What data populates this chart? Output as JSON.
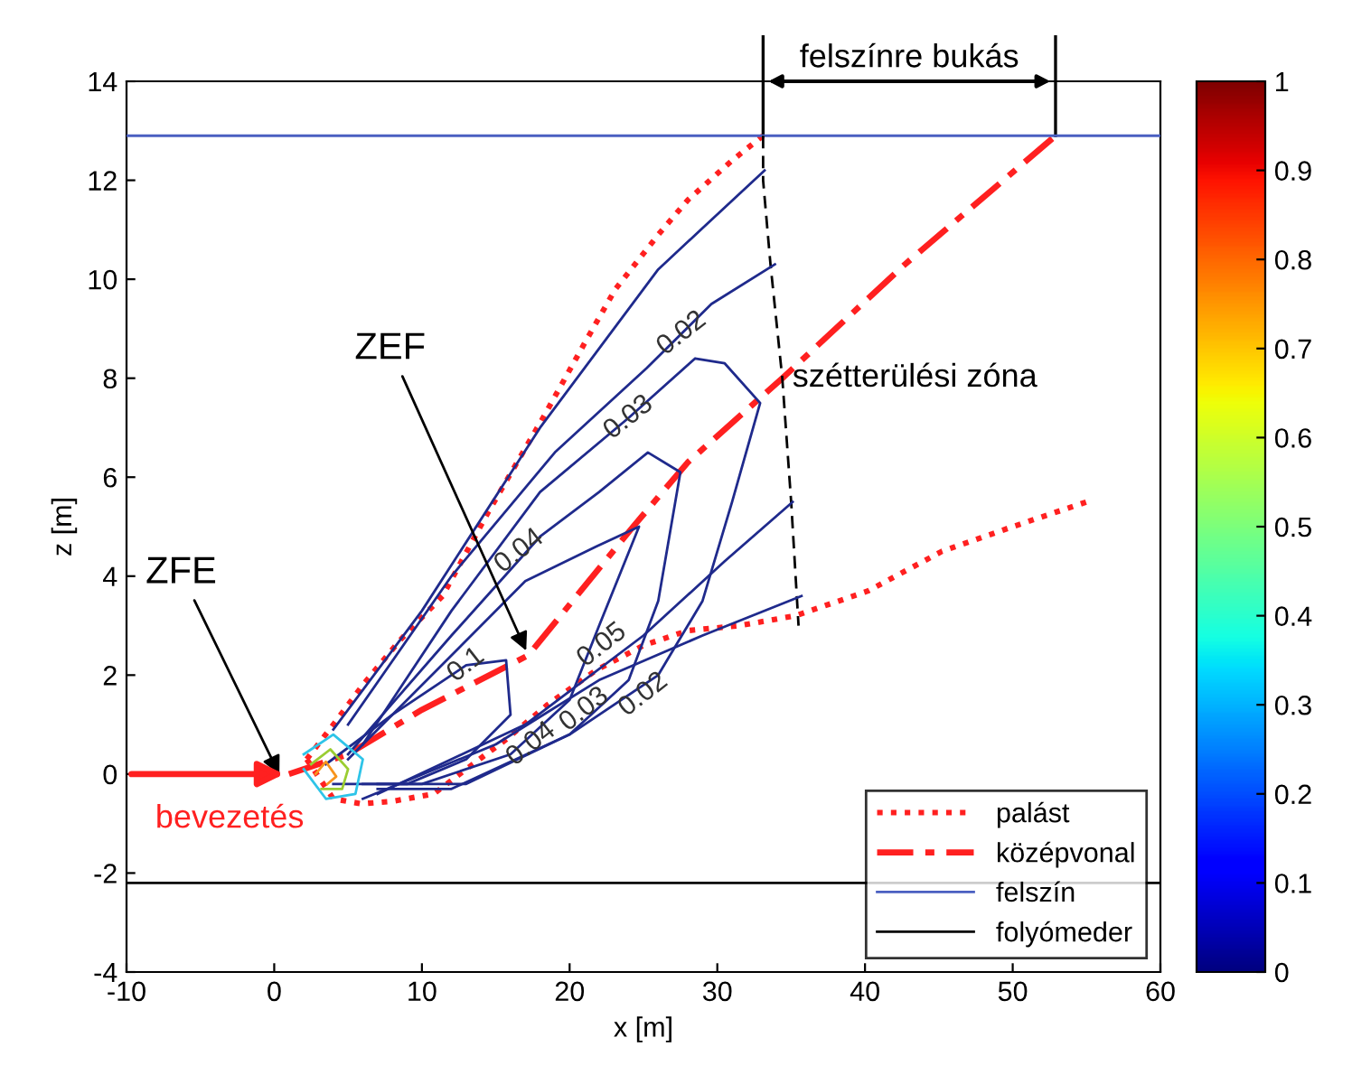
{
  "chart_data": {
    "type": "line",
    "xlabel": "x [m]",
    "ylabel": "z [m]",
    "xlim": [
      -10,
      60
    ],
    "ylim": [
      -4,
      14
    ],
    "xticks": [
      -10,
      0,
      10,
      20,
      30,
      40,
      50,
      60
    ],
    "yticks": [
      -4,
      -2,
      0,
      2,
      4,
      6,
      8,
      10,
      12,
      14
    ],
    "grid": false,
    "legend": "bottom right",
    "clim": [
      0,
      1
    ],
    "cticks": [
      0,
      0.1,
      0.2,
      0.3,
      0.4,
      0.5,
      0.6,
      0.7,
      0.8,
      0.9,
      1
    ],
    "series": [
      {
        "name": "palást",
        "color": "#ff2020",
        "line_style": "dotted",
        "x": [
          2.2,
          4,
          6,
          8.5,
          11.4,
          14.5,
          18.2,
          21,
          23.1,
          26,
          28,
          31,
          33.1
        ],
        "values": [
          0.3,
          1.0,
          1.8,
          2.7,
          3.6,
          5.3,
          7.2,
          8.7,
          9.8,
          10.9,
          11.6,
          12.4,
          12.9
        ]
      },
      {
        "color": "#ff2020",
        "line_style": "dotted",
        "x": [
          2.2,
          4,
          5.9,
          8,
          10.8,
          13,
          15.7,
          18.5,
          21.8,
          25,
          28,
          31.5,
          35.3,
          40.2,
          45.2,
          50,
          55
        ],
        "values": [
          0.3,
          -0.5,
          -0.6,
          -0.55,
          -0.4,
          0.1,
          0.7,
          1.4,
          2.1,
          2.6,
          2.9,
          3.0,
          3.2,
          3.7,
          4.5,
          5.0,
          5.5
        ]
      },
      {
        "name": "középvonal",
        "color": "#ff2020",
        "line_style": "dashdot",
        "x": [
          1,
          5,
          10,
          17.2,
          24.3,
          28,
          34.4,
          42.7,
          52.9
        ],
        "values": [
          0,
          0.4,
          1.3,
          2.4,
          5.0,
          6.3,
          8.0,
          10.3,
          12.9
        ]
      },
      {
        "name": "felszín",
        "color": "#4a5fc1",
        "line_style": "solid",
        "x": [
          -10,
          60
        ],
        "values": [
          12.9,
          12.9
        ]
      },
      {
        "name": "folyómeder",
        "color": "#000000",
        "line_style": "solid",
        "x": [
          -10,
          60
        ],
        "values": [
          -2.2,
          -2.2
        ]
      },
      {
        "color": "#000000",
        "line_style": "dashed",
        "x": [
          33.1,
          33.1,
          33.6,
          34.4,
          35.0,
          35.5
        ],
        "values": [
          12.9,
          12.0,
          10.3,
          8.0,
          5.5,
          3.0
        ]
      },
      {
        "color": "#1f2a8c",
        "line_style": "solid",
        "x": [
          4,
          10,
          18,
          26,
          33.2
        ],
        "values": [
          0.9,
          3.3,
          7.0,
          10.2,
          12.2
        ]
      },
      {
        "color": "#1f2a8c",
        "line_style": "solid",
        "x": [
          6,
          15,
          22,
          29,
          35.7
        ],
        "values": [
          -0.5,
          0.6,
          1.9,
          2.8,
          3.6
        ]
      },
      {
        "color": "#1f2a8c",
        "line_style": "solid",
        "x": [
          5,
          12,
          19,
          25.2,
          29.6,
          33.9
        ],
        "values": [
          1.0,
          4.0,
          6.5,
          8.2,
          9.5,
          10.3
        ]
      },
      {
        "color": "#1f2a8c",
        "line_style": "solid",
        "x": [
          7,
          17,
          25,
          30.5,
          35.1
        ],
        "values": [
          -0.4,
          1.0,
          2.8,
          4.3,
          5.5
        ]
      },
      {
        "color": "#1f2a8c",
        "line_style": "solid",
        "x": [
          6,
          12,
          18,
          24,
          28.5,
          30.5,
          32.9,
          31,
          29,
          26,
          20,
          12,
          7
        ],
        "values": [
          0.6,
          3.3,
          5.7,
          7.2,
          8.4,
          8.3,
          7.5,
          5.5,
          3.5,
          2.0,
          0.8,
          -0.3,
          -0.3
        ]
      },
      {
        "color": "#1f2a8c",
        "line_style": "solid",
        "x": [
          5,
          12,
          18,
          22,
          25.3,
          27.5,
          26,
          24,
          20,
          13,
          7
        ],
        "values": [
          0.4,
          2.8,
          4.8,
          5.7,
          6.5,
          6.1,
          3.5,
          1.9,
          0.8,
          -0.2,
          -0.2
        ]
      },
      {
        "color": "#1f2a8c",
        "line_style": "solid",
        "x": [
          5,
          12,
          17,
          21.8,
          24.7,
          22,
          20,
          16,
          10,
          6
        ],
        "values": [
          0.3,
          2.4,
          3.9,
          4.6,
          5.0,
          3.0,
          1.5,
          0.4,
          -0.2,
          -0.2
        ]
      },
      {
        "color": "#1f2a8c",
        "line_style": "solid",
        "x": [
          3.5,
          8,
          13,
          15.7,
          16,
          13,
          9,
          4
        ],
        "values": [
          0.2,
          1.2,
          2.2,
          2.3,
          1.2,
          0.3,
          -0.2,
          -0.2
        ]
      },
      {
        "color": "#2ec4e8",
        "line_style": "solid",
        "x": [
          2.0,
          4.0,
          6.0,
          5.5,
          3.5,
          2.0
        ],
        "values": [
          0.4,
          0.8,
          0.3,
          -0.4,
          -0.5,
          0.1
        ]
      },
      {
        "color": "#9acd32",
        "line_style": "solid",
        "x": [
          2.5,
          3.8,
          5.0,
          4.6,
          3.2
        ],
        "values": [
          0.2,
          0.5,
          0.1,
          -0.3,
          -0.3
        ]
      },
      {
        "color": "#f7941d",
        "line_style": "solid",
        "x": [
          2.8,
          3.5,
          4.2,
          3.6
        ],
        "values": [
          0.0,
          0.25,
          -0.05,
          -0.2
        ]
      }
    ],
    "annotations": [
      {
        "text": "ZEF",
        "x": 17.2,
        "y": 2.4
      },
      {
        "text": "ZFE",
        "x": 0.5,
        "y": -0.1
      },
      "bevezetés",
      {
        "text": "szétterülési zóna",
        "x": 34.4,
        "y": 8.0
      },
      {
        "text": "felszínre bukás",
        "x": 52.9,
        "y": 12.9
      },
      {
        "text": "0.02",
        "x": 27.6,
        "y": 8.9
      },
      {
        "text": "0.03",
        "x": 24,
        "y": 7.2
      },
      {
        "text": "0.04",
        "x": 16.6,
        "y": 4.5
      },
      {
        "text": "0.1",
        "x": 13,
        "y": 2.2
      },
      {
        "text": "0.05",
        "x": 22.2,
        "y": 2.6
      },
      {
        "text": "0.02",
        "x": 25.0,
        "y": 1.6
      },
      {
        "text": "0.03",
        "x": 21.0,
        "y": 1.3
      },
      {
        "text": "0.04",
        "x": 17.4,
        "y": 0.6
      }
    ]
  }
}
